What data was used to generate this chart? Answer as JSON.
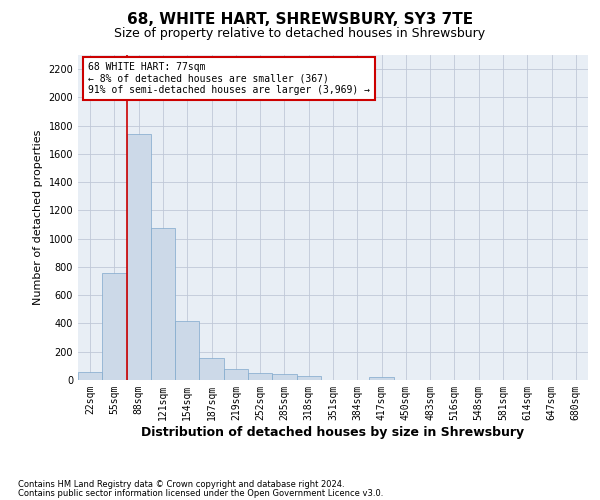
{
  "title": "68, WHITE HART, SHREWSBURY, SY3 7TE",
  "subtitle": "Size of property relative to detached houses in Shrewsbury",
  "xlabel": "Distribution of detached houses by size in Shrewsbury",
  "ylabel": "Number of detached properties",
  "footer1": "Contains HM Land Registry data © Crown copyright and database right 2024.",
  "footer2": "Contains public sector information licensed under the Open Government Licence v3.0.",
  "annotation_title": "68 WHITE HART: 77sqm",
  "annotation_line1": "← 8% of detached houses are smaller (367)",
  "annotation_line2": "91% of semi-detached houses are larger (3,969) →",
  "bar_color": "#ccd9e8",
  "bar_edge_color": "#7fa8cc",
  "grid_color": "#c0c8d8",
  "background_color": "#e8eef5",
  "fig_background": "#ffffff",
  "categories": [
    "22sqm",
    "55sqm",
    "88sqm",
    "121sqm",
    "154sqm",
    "187sqm",
    "219sqm",
    "252sqm",
    "285sqm",
    "318sqm",
    "351sqm",
    "384sqm",
    "417sqm",
    "450sqm",
    "483sqm",
    "516sqm",
    "548sqm",
    "581sqm",
    "614sqm",
    "647sqm",
    "680sqm"
  ],
  "values": [
    55,
    760,
    1740,
    1075,
    420,
    155,
    80,
    47,
    40,
    30,
    0,
    0,
    20,
    0,
    0,
    0,
    0,
    0,
    0,
    0,
    0
  ],
  "ylim": [
    0,
    2300
  ],
  "yticks": [
    0,
    200,
    400,
    600,
    800,
    1000,
    1200,
    1400,
    1600,
    1800,
    2000,
    2200
  ],
  "marker_color": "#cc0000",
  "annotation_box_color": "#cc0000",
  "title_fontsize": 11,
  "subtitle_fontsize": 9,
  "xlabel_fontsize": 9,
  "ylabel_fontsize": 8,
  "tick_fontsize": 7,
  "annotation_fontsize": 7,
  "footer_fontsize": 6
}
